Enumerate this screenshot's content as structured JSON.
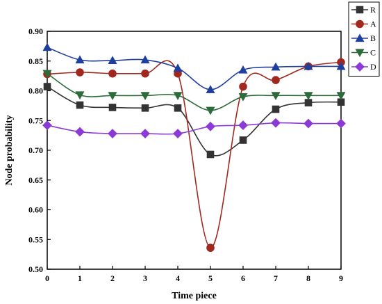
{
  "chart_data": {
    "type": "line",
    "xlabel": "Time piece",
    "ylabel": "Node probability",
    "x": [
      0,
      1,
      2,
      3,
      4,
      5,
      6,
      7,
      8,
      9
    ],
    "xlim": [
      0,
      9
    ],
    "ylim": [
      0.5,
      0.9
    ],
    "xticks": [
      "0",
      "1",
      "2",
      "3",
      "4",
      "5",
      "6",
      "7",
      "8",
      "9"
    ],
    "yticks": [
      "0.50",
      "0.55",
      "0.60",
      "0.65",
      "0.70",
      "0.75",
      "0.80",
      "0.85",
      "0.90"
    ],
    "grid": false,
    "legend_position": "top-right",
    "series": [
      {
        "name": "R",
        "color": "#333333",
        "marker": "square",
        "values": [
          0.807,
          0.776,
          0.772,
          0.771,
          0.771,
          0.693,
          0.717,
          0.769,
          0.78,
          0.781
        ]
      },
      {
        "name": "A",
        "color": "#a0281e",
        "marker": "circle",
        "values": [
          0.828,
          0.831,
          0.829,
          0.829,
          0.829,
          0.536,
          0.807,
          0.818,
          0.841,
          0.848
        ]
      },
      {
        "name": "B",
        "color": "#1f3f9e",
        "marker": "triangle-up",
        "values": [
          0.873,
          0.852,
          0.851,
          0.852,
          0.838,
          0.802,
          0.835,
          0.84,
          0.841,
          0.841
        ]
      },
      {
        "name": "C",
        "color": "#2e6b3a",
        "marker": "triangle-down",
        "values": [
          0.829,
          0.793,
          0.792,
          0.792,
          0.792,
          0.767,
          0.79,
          0.792,
          0.792,
          0.792
        ]
      },
      {
        "name": "D",
        "color": "#8c3ad6",
        "marker": "diamond",
        "values": [
          0.742,
          0.731,
          0.728,
          0.728,
          0.728,
          0.74,
          0.742,
          0.746,
          0.745,
          0.745
        ]
      }
    ]
  }
}
